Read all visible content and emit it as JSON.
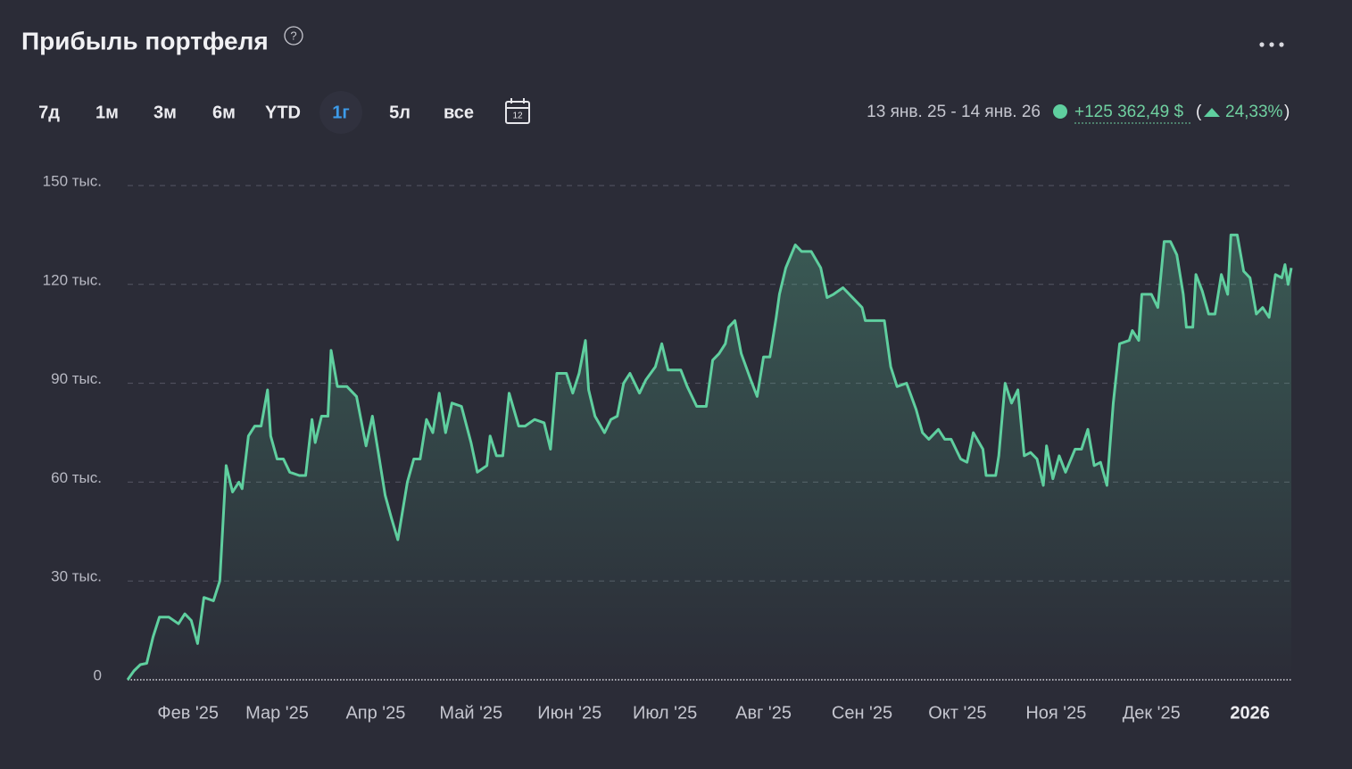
{
  "header": {
    "title": "Прибыль портфеля"
  },
  "periods": [
    "7д",
    "1м",
    "3м",
    "6м",
    "YTD",
    "1г",
    "5л",
    "все"
  ],
  "active_period": 5,
  "summary": {
    "range": "13 янв. 25 - 14 янв. 26",
    "change": "+125 362,49 $",
    "brackets": [
      "(",
      ")"
    ],
    "percent": "24,33%"
  },
  "chart_data": {
    "type": "area",
    "color": "#5fcf9f",
    "grid": true,
    "xlim": [
      0,
      366
    ],
    "xticks": [
      {
        "value": 19,
        "label": "Фев '25"
      },
      {
        "value": 47,
        "label": "Мар '25"
      },
      {
        "value": 78,
        "label": "Апр '25"
      },
      {
        "value": 108,
        "label": "Май '25"
      },
      {
        "value": 139,
        "label": "Июн '25"
      },
      {
        "value": 169,
        "label": "Июл '25"
      },
      {
        "value": 200,
        "label": "Авг '25"
      },
      {
        "value": 231,
        "label": "Сен '25"
      },
      {
        "value": 261,
        "label": "Окт '25"
      },
      {
        "value": 292,
        "label": "Ноя '25"
      },
      {
        "value": 322,
        "label": "Дек '25"
      },
      {
        "value": 353,
        "label": "2026"
      }
    ],
    "ylim": [
      0,
      150000
    ],
    "yticks": [
      {
        "value": 0,
        "label": "0"
      },
      {
        "value": 30000,
        "label": "30 тыс."
      },
      {
        "value": 60000,
        "label": "60 тыс."
      },
      {
        "value": 90000,
        "label": "90 тыс."
      },
      {
        "value": 120000,
        "label": "120 тыс."
      },
      {
        "value": 150000,
        "label": "150 тыс."
      }
    ],
    "x": [
      0,
      2,
      4,
      6,
      8,
      10,
      13,
      16,
      18,
      20,
      22,
      24,
      27,
      29,
      31,
      33,
      35,
      36,
      38,
      40,
      42,
      44,
      45,
      47,
      49,
      51,
      54,
      56,
      58,
      59,
      61,
      63,
      64,
      66,
      69,
      72,
      75,
      77,
      79,
      81,
      83,
      85,
      88,
      90,
      92,
      94,
      96,
      98,
      100,
      102,
      105,
      108,
      110,
      113,
      114,
      116,
      118,
      120,
      123,
      125,
      128,
      131,
      133,
      135,
      138,
      140,
      142,
      144,
      145,
      147,
      150,
      152,
      154,
      156,
      158,
      161,
      163,
      166,
      168,
      170,
      174,
      176,
      179,
      182,
      184,
      186,
      188,
      189,
      191,
      193,
      196,
      198,
      200,
      202,
      204,
      205,
      207,
      210,
      212,
      215,
      218,
      220,
      222,
      225,
      228,
      231,
      232,
      235,
      238,
      240,
      242,
      245,
      248,
      250,
      252,
      255,
      257,
      259,
      262,
      264,
      266,
      269,
      270,
      273,
      274,
      276,
      278,
      280,
      282,
      284,
      286,
      288,
      289,
      291,
      293,
      295,
      298,
      300,
      302,
      304,
      306,
      308,
      310,
      312,
      315,
      316,
      318,
      319,
      322,
      324,
      326,
      328,
      330,
      332,
      333,
      335,
      336,
      338,
      340,
      342,
      344,
      346,
      347,
      349,
      351,
      353,
      355,
      357,
      359,
      361,
      363,
      364,
      365,
      366
    ],
    "values": [
      0,
      2700,
      4600,
      5000,
      13000,
      19000,
      19000,
      17000,
      20000,
      18000,
      11000,
      25000,
      24000,
      30000,
      65000,
      57000,
      60000,
      58000,
      74000,
      77000,
      77000,
      88000,
      74000,
      67000,
      67000,
      63000,
      62000,
      62000,
      79000,
      72000,
      80000,
      80000,
      100000,
      89000,
      89000,
      86000,
      71000,
      80000,
      68000,
      56000,
      49000,
      42500,
      60000,
      67000,
      67000,
      79000,
      75000,
      87000,
      75000,
      84000,
      83000,
      72000,
      63000,
      65000,
      74000,
      68000,
      68000,
      87000,
      77000,
      77000,
      79000,
      78000,
      70000,
      93000,
      93000,
      87000,
      93000,
      103000,
      88000,
      80000,
      75000,
      79000,
      80000,
      90000,
      93000,
      87000,
      91000,
      95000,
      102000,
      94000,
      94000,
      89000,
      83000,
      83000,
      97000,
      99000,
      102000,
      107000,
      109000,
      99000,
      91000,
      86000,
      98000,
      98000,
      110000,
      117000,
      125000,
      132000,
      130000,
      130000,
      125000,
      116000,
      117000,
      119000,
      116000,
      113000,
      109000,
      109000,
      109000,
      95000,
      89000,
      90000,
      82000,
      75000,
      73000,
      76000,
      73000,
      73000,
      67000,
      66000,
      75000,
      70000,
      62000,
      62000,
      68000,
      90000,
      84000,
      88000,
      68000,
      69000,
      67000,
      59000,
      71000,
      61000,
      68000,
      63000,
      70000,
      70000,
      76000,
      65000,
      66000,
      59000,
      84000,
      102000,
      103000,
      106000,
      103000,
      117000,
      117000,
      113000,
      133000,
      133000,
      129000,
      117000,
      107000,
      107000,
      123000,
      118000,
      111000,
      111000,
      123000,
      117000,
      135000,
      135000,
      124000,
      122000,
      111000,
      113000,
      110000,
      123000,
      122000,
      126000,
      120000,
      125000
    ]
  }
}
